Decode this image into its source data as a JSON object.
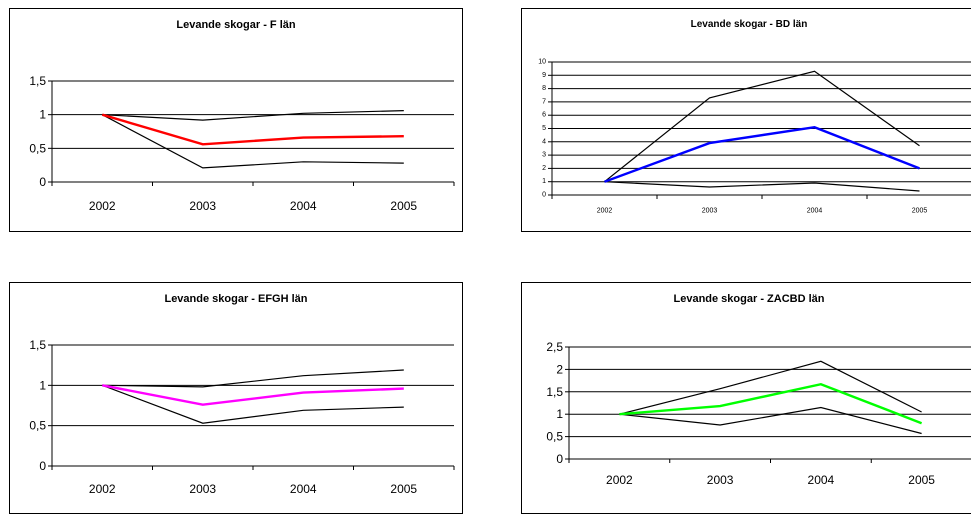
{
  "chart_data": [
    {
      "type": "line",
      "title": "Levande skogar - F län",
      "categories": [
        "2002",
        "2003",
        "2004",
        "2005"
      ],
      "ylim": [
        0,
        1.5
      ],
      "yticks": [
        "0",
        "0,5",
        "1",
        "1,5"
      ],
      "grid": true,
      "series": [
        {
          "values": [
            1.0,
            0.92,
            1.02,
            1.06
          ],
          "color": "#000000"
        },
        {
          "values": [
            1.0,
            0.21,
            0.3,
            0.28
          ],
          "color": "#000000"
        },
        {
          "values": [
            1.0,
            0.56,
            0.66,
            0.68
          ],
          "color": "#ff0000"
        }
      ]
    },
    {
      "type": "line",
      "title": "Levande skogar - BD län",
      "categories": [
        "2002",
        "2003",
        "2004",
        "2005"
      ],
      "ylim": [
        0,
        10
      ],
      "yticks": [
        "0",
        "1",
        "2",
        "3",
        "4",
        "5",
        "6",
        "7",
        "8",
        "9",
        "10"
      ],
      "grid": true,
      "series": [
        {
          "values": [
            1.0,
            7.3,
            9.3,
            3.7
          ],
          "color": "#000000"
        },
        {
          "values": [
            1.0,
            0.6,
            0.9,
            0.3
          ],
          "color": "#000000"
        },
        {
          "values": [
            1.0,
            3.9,
            5.1,
            2.0
          ],
          "color": "#0000ff"
        }
      ]
    },
    {
      "type": "line",
      "title": "Levande skogar - EFGH län",
      "categories": [
        "2002",
        "2003",
        "2004",
        "2005"
      ],
      "ylim": [
        0,
        1.5
      ],
      "yticks": [
        "0",
        "0,5",
        "1",
        "1,5"
      ],
      "grid": true,
      "series": [
        {
          "values": [
            1.0,
            0.98,
            1.12,
            1.19
          ],
          "color": "#000000"
        },
        {
          "values": [
            1.0,
            0.53,
            0.69,
            0.73
          ],
          "color": "#000000"
        },
        {
          "values": [
            1.0,
            0.76,
            0.91,
            0.96
          ],
          "color": "#ff00ff"
        }
      ]
    },
    {
      "type": "line",
      "title": "Levande skogar - ZACBD län",
      "categories": [
        "2002",
        "2003",
        "2004",
        "2005"
      ],
      "ylim": [
        0,
        2.5
      ],
      "yticks": [
        "0",
        "0,5",
        "1",
        "1,5",
        "2",
        "2,5"
      ],
      "grid": true,
      "series": [
        {
          "values": [
            1.0,
            1.57,
            2.18,
            1.05
          ],
          "color": "#000000"
        },
        {
          "values": [
            1.0,
            0.76,
            1.15,
            0.57
          ],
          "color": "#000000"
        },
        {
          "values": [
            1.0,
            1.18,
            1.67,
            0.8
          ],
          "color": "#00ff00"
        }
      ]
    }
  ]
}
